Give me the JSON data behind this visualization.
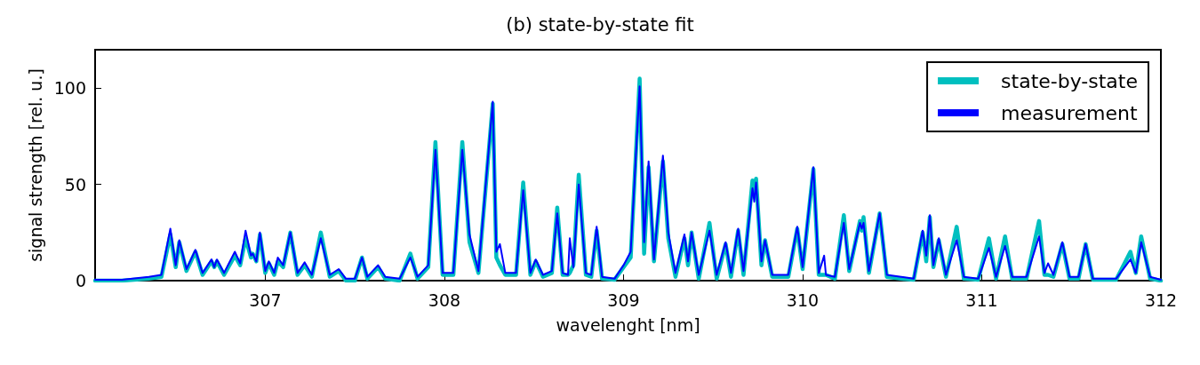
{
  "chart_data": {
    "type": "line",
    "title": "(b) state-by-state fit",
    "xlabel": "wavelenght [nm]",
    "ylabel": "signal strength [rel. u.]",
    "xlim": [
      306.05,
      312
    ],
    "xticks": [
      307,
      308,
      309,
      310,
      311,
      312
    ],
    "ylim": [
      0,
      120
    ],
    "yticks": [
      0,
      50,
      100
    ],
    "grid": false,
    "legend": "top right",
    "marker": "none",
    "line_style": "solid",
    "x": [
      306.05,
      306.2,
      306.35,
      306.42,
      306.47,
      306.5,
      306.52,
      306.56,
      306.61,
      306.65,
      306.7,
      306.715,
      306.73,
      306.77,
      306.83,
      306.86,
      306.89,
      306.92,
      306.93,
      306.95,
      306.97,
      307.0,
      307.02,
      307.05,
      307.07,
      307.1,
      307.14,
      307.18,
      307.22,
      307.26,
      307.31,
      307.36,
      307.41,
      307.45,
      307.5,
      307.54,
      307.57,
      307.63,
      307.67,
      307.75,
      307.81,
      307.85,
      307.91,
      307.95,
      307.99,
      308.05,
      308.1,
      308.14,
      308.19,
      308.27,
      308.29,
      308.31,
      308.34,
      308.4,
      308.44,
      308.48,
      308.51,
      308.55,
      308.6,
      308.63,
      308.66,
      308.69,
      308.7,
      308.72,
      308.75,
      308.79,
      308.82,
      308.85,
      308.88,
      308.95,
      309.0,
      309.04,
      309.09,
      309.115,
      309.14,
      309.17,
      309.22,
      309.25,
      309.29,
      309.34,
      309.36,
      309.38,
      309.42,
      309.48,
      309.52,
      309.57,
      309.6,
      309.64,
      309.67,
      309.72,
      309.73,
      309.74,
      309.77,
      309.79,
      309.83,
      309.92,
      309.97,
      310.0,
      310.06,
      310.09,
      310.12,
      310.13,
      310.18,
      310.23,
      310.26,
      310.32,
      310.33,
      310.34,
      310.37,
      310.43,
      310.47,
      310.55,
      310.62,
      310.67,
      310.69,
      310.71,
      310.73,
      310.76,
      310.8,
      310.86,
      310.9,
      310.98,
      311.04,
      311.08,
      311.13,
      311.17,
      311.25,
      311.32,
      311.35,
      311.37,
      311.4,
      311.45,
      311.49,
      311.54,
      311.58,
      311.62,
      311.75,
      311.83,
      311.86,
      311.89,
      311.94,
      312.0
    ],
    "series": [
      {
        "name": "state-by-state",
        "color": "#00bfbf",
        "values": [
          0,
          0,
          1,
          2,
          24,
          7,
          20,
          5,
          15,
          3,
          10,
          7,
          10,
          3,
          13,
          8,
          22,
          12,
          14,
          10,
          24,
          4,
          9,
          3,
          10,
          7,
          25,
          3,
          8,
          2,
          25,
          2,
          5,
          0,
          0,
          12,
          1,
          7,
          1,
          0,
          14,
          1,
          7,
          72,
          3,
          3,
          72,
          20,
          4,
          92,
          12,
          8,
          3,
          3,
          51,
          3,
          10,
          2,
          4,
          38,
          3,
          3,
          4,
          8,
          55,
          3,
          2,
          26,
          1,
          0.5,
          7,
          12,
          105,
          14,
          59,
          10,
          62,
          22,
          2,
          22,
          8,
          25,
          1,
          30,
          1,
          19,
          2,
          26,
          3,
          52,
          44,
          53,
          8,
          21,
          2,
          2,
          27,
          6,
          58,
          3,
          3,
          3,
          1,
          34,
          5,
          31,
          26,
          33,
          4,
          35,
          2,
          1,
          0.5,
          25,
          10,
          33,
          7,
          21,
          2,
          28,
          1,
          0.5,
          22,
          1,
          23,
          1,
          1,
          31,
          3,
          3,
          2,
          19,
          1,
          1,
          19,
          0.5,
          0.5,
          15,
          4,
          23,
          1,
          0
        ]
      },
      {
        "name": "measurement",
        "color": "#0000ff",
        "values": [
          0.5,
          0.5,
          2,
          3,
          27,
          8,
          21,
          6,
          16,
          4,
          11,
          7,
          11,
          4,
          15,
          9,
          26,
          13,
          14,
          10,
          25,
          5,
          10,
          4,
          12,
          8,
          25,
          4,
          9.5,
          3,
          22,
          3,
          6,
          1,
          1,
          12,
          2,
          8,
          2,
          1,
          12,
          2,
          8,
          68,
          4,
          4,
          68,
          24,
          5,
          93,
          15,
          19,
          4,
          4,
          47,
          4,
          11,
          3,
          5,
          35,
          4,
          3,
          22,
          7,
          50,
          4,
          3,
          28,
          2,
          1,
          8,
          15,
          101,
          20,
          62,
          11,
          65,
          25,
          4,
          24,
          10,
          25,
          3,
          26,
          3,
          20,
          4,
          27,
          5,
          48,
          41,
          51,
          10,
          21,
          3,
          3,
          28,
          7,
          59,
          4,
          13,
          3,
          2,
          30,
          6,
          30,
          27,
          30,
          5,
          35,
          3,
          2,
          1,
          26,
          13,
          34,
          8,
          22,
          3,
          21,
          2,
          1,
          17,
          2,
          18,
          2,
          2,
          23,
          4,
          9,
          3,
          20,
          2,
          2,
          19,
          1,
          1,
          11,
          4,
          20,
          2,
          0.5
        ]
      }
    ]
  }
}
